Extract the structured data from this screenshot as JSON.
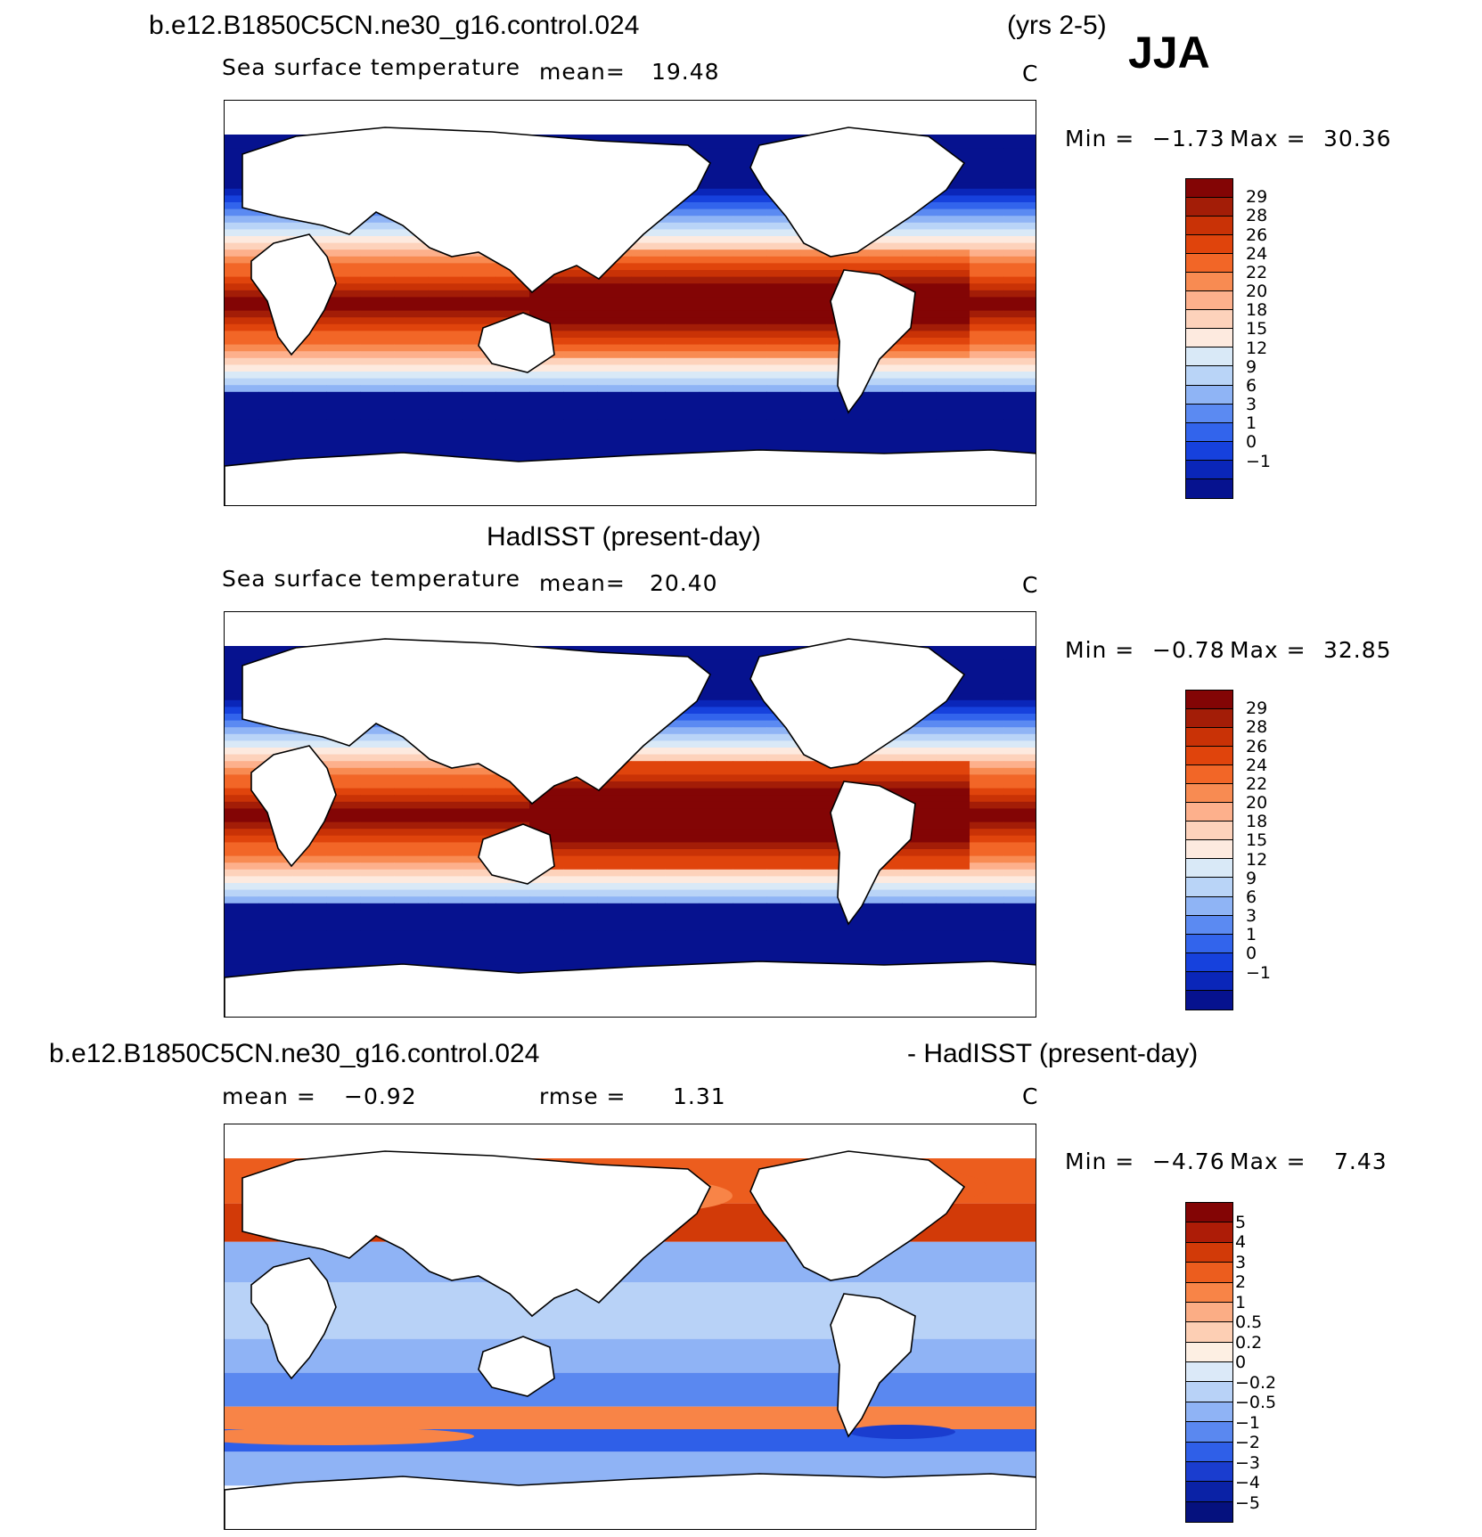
{
  "header": {
    "case_title": "b.e12.B1850C5CN.ne30_g16.control.024",
    "years": "(yrs 2-5)",
    "season": "JJA"
  },
  "panels": [
    {
      "id": "model",
      "variable": "Sea surface temperature",
      "stat_label": "mean=",
      "stat_value": "19.48",
      "units": "C",
      "min_label": "Min =",
      "min_value": "−1.73",
      "max_label": "Max =",
      "max_value": "30.36",
      "colorbar_levels": [
        "29",
        "28",
        "26",
        "24",
        "22",
        "20",
        "18",
        "15",
        "12",
        "9",
        "6",
        "3",
        "1",
        "0",
        "−1"
      ]
    },
    {
      "id": "obs",
      "title": "HadISST (present-day)",
      "variable": "Sea surface temperature",
      "stat_label": "mean=",
      "stat_value": "20.40",
      "units": "C",
      "min_label": "Min =",
      "min_value": "−0.78",
      "max_label": "Max =",
      "max_value": "32.85",
      "colorbar_levels": [
        "29",
        "28",
        "26",
        "24",
        "22",
        "20",
        "18",
        "15",
        "12",
        "9",
        "6",
        "3",
        "1",
        "0",
        "−1"
      ]
    },
    {
      "id": "diff",
      "title_left": "b.e12.B1850C5CN.ne30_g16.control.024",
      "title_right": "- HadISST (present-day)",
      "mean_label": "mean =",
      "mean_value": "−0.92",
      "rmse_label": "rmse =",
      "rmse_value": "1.31",
      "units": "C",
      "min_label": "Min =",
      "min_value": "−4.76",
      "max_label": "Max =",
      "max_value": "7.43",
      "colorbar_levels": [
        "5",
        "4",
        "3",
        "2",
        "1",
        "0.5",
        "0.2",
        "0",
        "−0.2",
        "−0.5",
        "−1",
        "−2",
        "−3",
        "−4",
        "−5"
      ]
    }
  ],
  "colors": {
    "sst_ramp": [
      "#830505",
      "#a31d07",
      "#c93206",
      "#e0440c",
      "#f26627",
      "#f88b52",
      "#fdb08c",
      "#fdd2bb",
      "#fdeadf",
      "#d9e9f7",
      "#b9d4f7",
      "#8fb4f5",
      "#5b8af2",
      "#3264ec",
      "#1641dd",
      "#0a26b9",
      "#06128f"
    ],
    "diff_ramp": [
      "#830505",
      "#ad1c07",
      "#d23a08",
      "#ec5d1e",
      "#f88447",
      "#fbad85",
      "#fdcfb4",
      "#fdefe3",
      "#dbe9f8",
      "#b8d2f7",
      "#8fb3f5",
      "#5a88f0",
      "#2f5fe8",
      "#1a3dcf",
      "#0a22a6",
      "#05117e"
    ]
  }
}
